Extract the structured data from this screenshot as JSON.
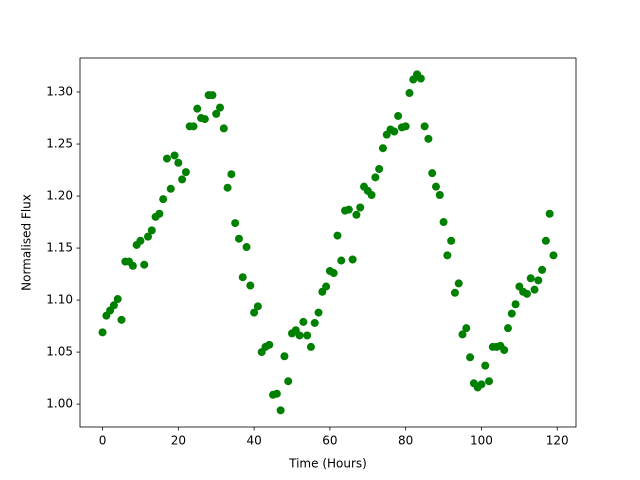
{
  "chart_data": {
    "type": "scatter",
    "xlabel": "Time (Hours)",
    "ylabel": "Normalised Flux",
    "color": "#008000",
    "x": [
      0,
      1,
      2,
      3,
      4,
      5,
      6,
      7,
      8,
      9,
      10,
      11,
      12,
      13,
      14,
      15,
      16,
      17,
      18,
      19,
      20,
      21,
      22,
      23,
      24,
      25,
      26,
      27,
      28,
      29,
      30,
      31,
      32,
      33,
      34,
      35,
      36,
      37,
      38,
      39,
      40,
      41,
      42,
      43,
      44,
      45,
      46,
      47,
      48,
      49,
      50,
      51,
      52,
      53,
      54,
      55,
      56,
      57,
      58,
      59,
      60,
      61,
      62,
      63,
      64,
      65,
      66,
      67,
      68,
      69,
      70,
      71,
      72,
      73,
      74,
      75,
      76,
      77,
      78,
      79,
      80,
      81,
      82,
      83,
      84,
      85,
      86,
      87,
      88,
      89,
      90,
      91,
      92,
      93,
      94,
      95,
      96,
      97,
      98,
      99,
      100,
      101,
      102,
      103,
      104,
      105,
      106,
      107,
      108,
      109,
      110,
      111,
      112,
      113,
      114,
      115,
      116,
      117,
      118,
      119
    ],
    "values": [
      1.069,
      1.085,
      1.09,
      1.095,
      1.101,
      1.081,
      1.137,
      1.137,
      1.133,
      1.153,
      1.157,
      1.134,
      1.161,
      1.167,
      1.18,
      1.183,
      1.197,
      1.236,
      1.207,
      1.239,
      1.232,
      1.216,
      1.223,
      1.267,
      1.267,
      1.284,
      1.275,
      1.274,
      1.297,
      1.297,
      1.279,
      1.285,
      1.265,
      1.208,
      1.221,
      1.174,
      1.159,
      1.122,
      1.151,
      1.114,
      1.088,
      1.094,
      1.05,
      1.055,
      1.057,
      1.009,
      1.01,
      0.994,
      1.046,
      1.022,
      1.068,
      1.071,
      1.066,
      1.079,
      1.066,
      1.055,
      1.078,
      1.088,
      1.108,
      1.113,
      1.128,
      1.126,
      1.162,
      1.138,
      1.186,
      1.187,
      1.139,
      1.182,
      1.189,
      1.209,
      1.205,
      1.201,
      1.218,
      1.226,
      1.246,
      1.259,
      1.264,
      1.262,
      1.277,
      1.266,
      1.267,
      1.299,
      1.312,
      1.317,
      1.313,
      1.267,
      1.255,
      1.222,
      1.209,
      1.201,
      1.175,
      1.143,
      1.157,
      1.107,
      1.116,
      1.067,
      1.073,
      1.045,
      1.02,
      1.016,
      1.019,
      1.037,
      1.022,
      1.055,
      1.055,
      1.056,
      1.052,
      1.073,
      1.087,
      1.096,
      1.113,
      1.108,
      1.106,
      1.121,
      1.11,
      1.119,
      1.129,
      1.157,
      1.183,
      1.143
    ],
    "xlim": [
      -5.95,
      124.95
    ],
    "ylim": [
      0.978,
      1.3327
    ],
    "xticks": [
      0,
      20,
      40,
      60,
      80,
      100,
      120
    ],
    "yticks": [
      {
        "value": 1.0,
        "label": "1.00"
      },
      {
        "value": 1.05,
        "label": "1.05"
      },
      {
        "value": 1.1,
        "label": "1.10"
      },
      {
        "value": 1.15,
        "label": "1.15"
      },
      {
        "value": 1.2,
        "label": "1.20"
      },
      {
        "value": 1.25,
        "label": "1.25"
      },
      {
        "value": 1.3,
        "label": "1.30"
      }
    ]
  }
}
